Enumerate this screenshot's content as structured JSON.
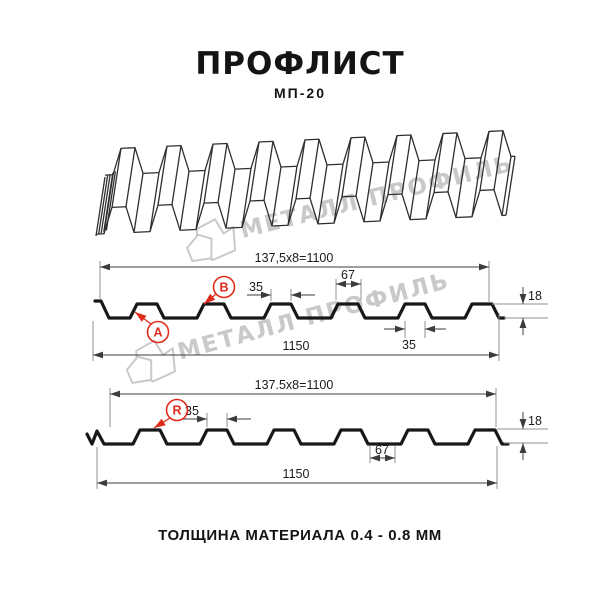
{
  "header": {
    "title": "ПРОФЛИСТ",
    "code": "МП-20"
  },
  "footer": {
    "note": "ТОЛЩИНА МАТЕРИАЛА 0.4 - 0.8 ММ"
  },
  "watermark": {
    "text": "МЕТАЛЛ ПРОФИЛЬ"
  },
  "colors": {
    "accent_red": "#de2b1c",
    "ink": "#1a1a1a",
    "watermark_gray": "#c9c9c9"
  },
  "profile_top": {
    "width_coverage": "137,5x8=1100",
    "width_overall": "1150",
    "crest_width": "35",
    "rib_base_width": "67",
    "height": "18",
    "crest_width_bottom": "35",
    "point_a": "A",
    "point_b": "B"
  },
  "profile_bottom": {
    "width_coverage": "137.5x8=1100",
    "width_overall": "1150",
    "crest_width": "35",
    "valley_width": "67",
    "height": "18",
    "point_r": "R"
  }
}
